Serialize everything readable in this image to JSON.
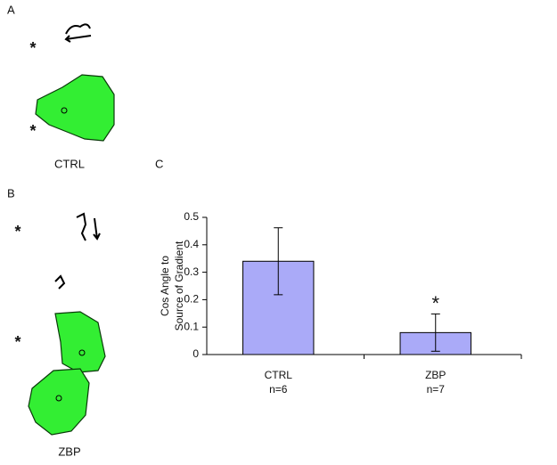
{
  "panels": {
    "A": {
      "label": "A",
      "caption": "CTRL",
      "markers": [
        "*",
        "*"
      ]
    },
    "B": {
      "label": "B",
      "caption": "ZBP",
      "markers": [
        "*",
        "*"
      ]
    },
    "C": {
      "label": "C"
    }
  },
  "chart_data": {
    "type": "bar",
    "ylabel": [
      "Cos Angle to",
      "Source of Gradient"
    ],
    "categories": [
      "CTRL",
      "ZBP"
    ],
    "n_labels": [
      "n=6",
      "n=7"
    ],
    "values": [
      0.34,
      0.08
    ],
    "errors": [
      0.122,
      0.068
    ],
    "color": "#aaaaf8",
    "annotations": [
      {
        "category": "ZBP",
        "text": "*"
      }
    ],
    "ylim": [
      0,
      0.5
    ],
    "yticks": [
      0,
      0.1,
      0.2,
      0.3,
      0.4,
      0.5
    ],
    "grid": false
  }
}
